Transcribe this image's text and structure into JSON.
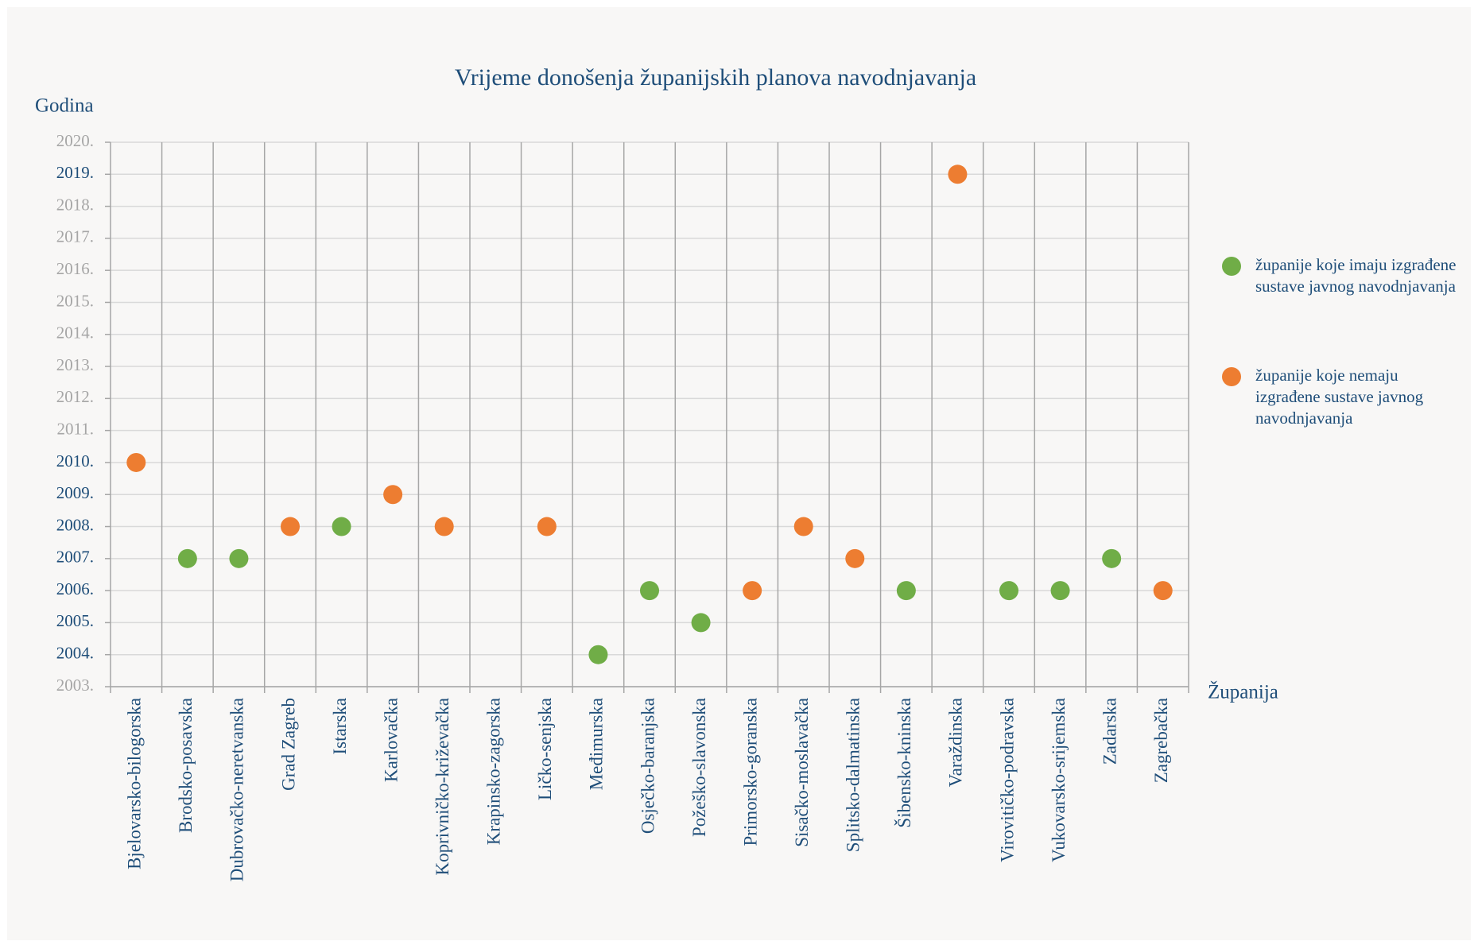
{
  "chart_data": {
    "type": "scatter",
    "title": "Vrijeme donošenja županijskih planova navodnjavanja",
    "y_label": "Godina",
    "x_label": "Županija",
    "categories": [
      "Bjelovarsko-bilogorska",
      "Brodsko-posavska",
      "Dubrovačko-neretvanska",
      "Grad Zagreb",
      "Istarska",
      "Karlovačka",
      "Koprivničko-križevačka",
      "Krapinsko-zagorska",
      "Ličko-senjska",
      "Međimurska",
      "Osječko-baranjska",
      "Požeško-slavonska",
      "Primorsko-goranska",
      "Sisačko-moslavačka",
      "Splitsko-dalmatinska",
      "Šibensko-kninska",
      "Varaždinska",
      "Virovitičko-podravska",
      "Vukovarsko-srijemska",
      "Zadarska",
      "Zagrebačka"
    ],
    "series": [
      {
        "name": "županije koje imaju izgrađene sustave javnog navodnjavanja",
        "color": "#70ad47",
        "values": [
          null,
          2007,
          2007,
          null,
          2008,
          null,
          null,
          null,
          null,
          2004,
          2006,
          2005,
          null,
          null,
          null,
          2006,
          null,
          2006,
          2006,
          2007,
          null
        ]
      },
      {
        "name": "županije koje nemaju izgrađene sustave javnog navodnjavanja",
        "color": "#ed7d31",
        "values": [
          2010,
          null,
          null,
          2008,
          null,
          2009,
          2008,
          null,
          2008,
          null,
          null,
          null,
          2006,
          2008,
          2007,
          null,
          2019,
          null,
          null,
          null,
          2006
        ]
      }
    ],
    "ylim": [
      2003,
      2020
    ],
    "yticks": [
      {
        "value": 2003,
        "label": "2003."
      },
      {
        "value": 2004,
        "label": "2004."
      },
      {
        "value": 2005,
        "label": "2005."
      },
      {
        "value": 2006,
        "label": "2006."
      },
      {
        "value": 2007,
        "label": "2007."
      },
      {
        "value": 2008,
        "label": "2008."
      },
      {
        "value": 2009,
        "label": "2009."
      },
      {
        "value": 2010,
        "label": "2010."
      },
      {
        "value": 2011,
        "label": "2011."
      },
      {
        "value": 2012,
        "label": "2012."
      },
      {
        "value": 2013,
        "label": "2013."
      },
      {
        "value": 2014,
        "label": "2014."
      },
      {
        "value": 2015,
        "label": "2015."
      },
      {
        "value": 2016,
        "label": "2016."
      },
      {
        "value": 2017,
        "label": "2017."
      },
      {
        "value": 2018,
        "label": "2018."
      },
      {
        "value": 2019,
        "label": "2019."
      },
      {
        "value": 2020,
        "label": "2020."
      }
    ],
    "grid": true,
    "legend": "right"
  }
}
